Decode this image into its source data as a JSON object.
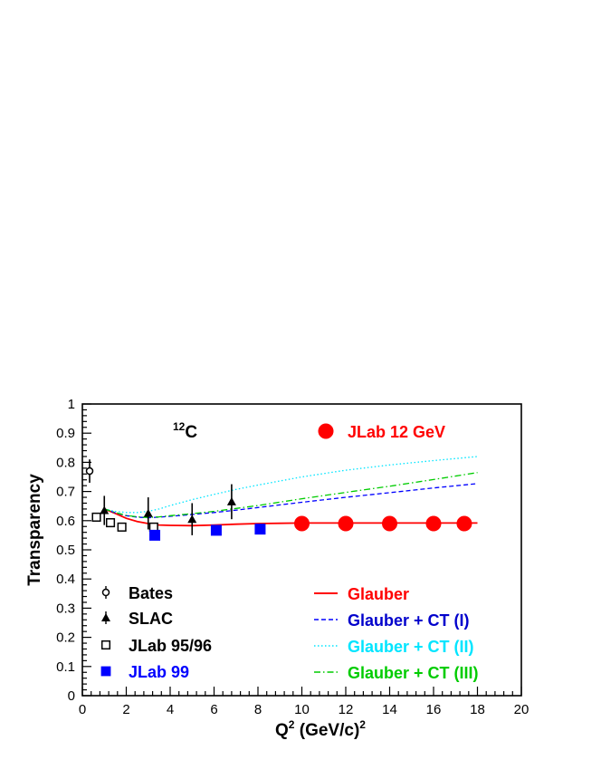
{
  "chart_data": {
    "type": "scatter",
    "title": "",
    "xlabel": "Q",
    "xlabel_sup": "2",
    "xlabel_rest": " (GeV/c)",
    "xlabel_sup2": "2",
    "ylabel": "Transparency",
    "xlim": [
      0,
      20
    ],
    "ylim": [
      0,
      1
    ],
    "x_ticks": [
      "0",
      "2",
      "4",
      "6",
      "8",
      "10",
      "12",
      "14",
      "16",
      "18",
      "20"
    ],
    "y_ticks": [
      "0",
      "0.1",
      "0.2",
      "0.3",
      "0.4",
      "0.5",
      "0.6",
      "0.7",
      "0.8",
      "0.9",
      "1"
    ],
    "annotation_sup": "12",
    "annotation": "C",
    "series": [
      {
        "name": "Bates",
        "kind": "points",
        "marker": "open-circle",
        "color": "#000000",
        "x": [
          0.33
        ],
        "y": [
          0.77
        ],
        "err": [
          0.04
        ]
      },
      {
        "name": "SLAC",
        "kind": "points",
        "marker": "filled-triangle",
        "color": "#000000",
        "x": [
          1.0,
          3.0,
          5.0,
          6.8
        ],
        "y": [
          0.635,
          0.625,
          0.605,
          0.665
        ],
        "err": [
          0.05,
          0.055,
          0.055,
          0.06
        ]
      },
      {
        "name": "JLab 95/96",
        "kind": "points",
        "marker": "open-square",
        "color": "#000000",
        "x": [
          0.64,
          1.28,
          1.8,
          3.25
        ],
        "y": [
          0.612,
          0.593,
          0.578,
          0.578
        ],
        "err": [
          0.012,
          0.012,
          0.012,
          0.012
        ]
      },
      {
        "name": "JLab 99",
        "kind": "points",
        "marker": "filled-square",
        "color": "#0000ff",
        "x": [
          3.3,
          6.1,
          8.1
        ],
        "y": [
          0.55,
          0.567,
          0.571
        ],
        "err": [
          0.012,
          0.012,
          0.012
        ]
      },
      {
        "name": "JLab 12 GeV",
        "kind": "points",
        "marker": "filled-circle",
        "color": "#ff0000",
        "x": [
          10.0,
          12.0,
          14.0,
          16.0,
          17.4
        ],
        "y": [
          0.59,
          0.59,
          0.59,
          0.59,
          0.59
        ],
        "err": [
          0.02,
          0.02,
          0.02,
          0.02,
          0.02
        ]
      },
      {
        "name": "Glauber",
        "kind": "line",
        "dash": "solid",
        "color": "#ff0000",
        "x": [
          1.0,
          1.5,
          2.0,
          2.5,
          3.0,
          3.5,
          4.0,
          5.0,
          6.0,
          7.0,
          8.0,
          9.0,
          10.0,
          12.0,
          14.0,
          16.0,
          18.0
        ],
        "y": [
          0.64,
          0.625,
          0.608,
          0.597,
          0.59,
          0.585,
          0.584,
          0.583,
          0.585,
          0.588,
          0.59,
          0.591,
          0.592,
          0.592,
          0.592,
          0.592,
          0.592
        ]
      },
      {
        "name": "Glauber + CT (I)",
        "kind": "line",
        "dash": "dashed",
        "color": "#0000ff",
        "x": [
          1.0,
          1.5,
          2.0,
          2.5,
          3.0,
          3.5,
          4.0,
          5.0,
          6.0,
          7.0,
          8.0,
          10.0,
          12.0,
          14.0,
          16.0,
          18.0
        ],
        "y": [
          0.64,
          0.627,
          0.617,
          0.612,
          0.61,
          0.612,
          0.615,
          0.621,
          0.628,
          0.636,
          0.645,
          0.663,
          0.68,
          0.696,
          0.712,
          0.727
        ]
      },
      {
        "name": "Glauber + CT (II)",
        "kind": "line",
        "dash": "dotted",
        "color": "#00e5ff",
        "x": [
          1.0,
          1.5,
          2.0,
          2.5,
          3.0,
          3.5,
          4.0,
          5.0,
          6.0,
          7.0,
          8.0,
          10.0,
          12.0,
          14.0,
          16.0,
          18.0
        ],
        "y": [
          0.64,
          0.632,
          0.628,
          0.628,
          0.632,
          0.64,
          0.652,
          0.672,
          0.69,
          0.707,
          0.722,
          0.75,
          0.773,
          0.791,
          0.806,
          0.82
        ]
      },
      {
        "name": "Glauber + CT (III)",
        "kind": "line",
        "dash": "dashdot",
        "color": "#00cc00",
        "x": [
          1.0,
          1.5,
          2.0,
          2.5,
          3.0,
          3.5,
          4.0,
          5.0,
          6.0,
          7.0,
          8.0,
          10.0,
          12.0,
          14.0,
          16.0,
          18.0
        ],
        "y": [
          0.64,
          0.628,
          0.618,
          0.613,
          0.611,
          0.613,
          0.617,
          0.624,
          0.632,
          0.642,
          0.652,
          0.675,
          0.697,
          0.718,
          0.741,
          0.765
        ]
      }
    ],
    "legend": {
      "left_points": [
        {
          "label": "Bates",
          "color": "#000000",
          "marker": "open-circle"
        },
        {
          "label": "SLAC",
          "color": "#000000",
          "marker": "filled-triangle"
        },
        {
          "label": "JLab 95/96",
          "color": "#000000",
          "marker": "open-square"
        },
        {
          "label": "JLab 99",
          "color": "#0000ff",
          "marker": "filled-square"
        }
      ],
      "right_lines": [
        {
          "label": "Glauber",
          "color": "#ff0000",
          "dash": "solid"
        },
        {
          "label": "Glauber + CT (I)",
          "color": "#0000cc",
          "line_color": "#0000ff",
          "dash": "dashed"
        },
        {
          "label": "Glauber + CT (II)",
          "color": "#00e5ff",
          "line_color": "#00e5ff",
          "dash": "dotted"
        },
        {
          "label": "Glauber + CT (III)",
          "color": "#00cc00",
          "line_color": "#00cc00",
          "dash": "dashdot"
        }
      ],
      "top": {
        "label": "JLab 12 GeV",
        "color": "#ff0000",
        "marker": "filled-circle"
      }
    }
  }
}
